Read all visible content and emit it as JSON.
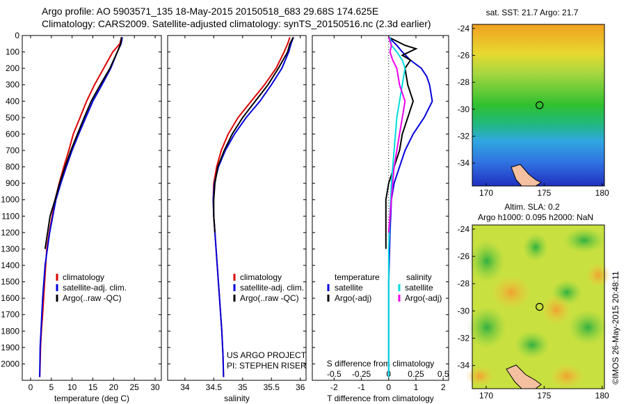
{
  "header": {
    "line1": "Argo profile: AO 5903571_135 18-May-2015 20150518_683 29.68S 174.625E",
    "line2": "Climatology: CARS2009. Satellite-adjusted climatology: synTS_20150516.nc (2.3d earlier)"
  },
  "project": {
    "line1": "US ARGO PROJECT",
    "line2": "PI: STEPHEN RISER"
  },
  "stamp": "©IMOS 26-May-2015 20:48:11",
  "colors": {
    "climatology": "#dd0000",
    "satellite": "#0000dd",
    "argo": "#000000",
    "cyan": "#00dddd",
    "magenta": "#ee00ee"
  },
  "chart_data": [
    {
      "type": "line",
      "xlabel": "temperature (deg C)",
      "ylim": [
        2100,
        0
      ],
      "xlim": [
        -2,
        31.5
      ],
      "xticks": [
        0,
        5,
        10,
        15,
        20,
        25,
        30
      ],
      "yticks": [
        0,
        100,
        200,
        300,
        400,
        500,
        600,
        700,
        800,
        900,
        1000,
        1100,
        1200,
        1300,
        1400,
        1500,
        1600,
        1700,
        1800,
        1900,
        2000
      ],
      "legend": [
        "climatology",
        "satellite-adj. clim.",
        "Argo(..raw -QC)"
      ],
      "series": [
        {
          "name": "climatology",
          "color": "#dd0000",
          "x": [
            21.9,
            21.5,
            19.8,
            17.6,
            15.4,
            13.5,
            11.9,
            10.3,
            9.2,
            8.0,
            6.9,
            5.9,
            4.5,
            3.9,
            3.4,
            2.9,
            2.6,
            2.4,
            2.3,
            2.2
          ],
          "y": [
            10,
            50,
            100,
            200,
            300,
            400,
            500,
            600,
            700,
            800,
            900,
            1000,
            1200,
            1300,
            1500,
            1700,
            1800,
            1900,
            2000,
            2080
          ]
        },
        {
          "name": "satellite-adj. clim.",
          "color": "#0000dd",
          "x": [
            22.1,
            21.8,
            20.9,
            19.3,
            17.2,
            15.0,
            13.3,
            11.6,
            10.0,
            8.6,
            7.3,
            6.1,
            4.6,
            3.5,
            2.9,
            2.5,
            2.3,
            2.2
          ],
          "y": [
            10,
            50,
            100,
            200,
            300,
            400,
            500,
            600,
            700,
            800,
            900,
            1000,
            1200,
            1400,
            1600,
            1800,
            1900,
            2080
          ]
        },
        {
          "name": "Argo(..raw -QC)",
          "color": "#000000",
          "x": [
            21.9,
            21.7,
            20.9,
            19.1,
            16.8,
            14.6,
            12.9,
            11.3,
            9.7,
            8.3,
            7.0,
            5.9,
            4.7,
            4.1,
            3.5
          ],
          "y": [
            10,
            50,
            100,
            200,
            300,
            400,
            500,
            600,
            700,
            800,
            900,
            1000,
            1100,
            1200,
            1300
          ]
        }
      ]
    },
    {
      "type": "line",
      "xlabel": "salinity",
      "ylim": [
        2100,
        0
      ],
      "xlim": [
        33.7,
        36.1
      ],
      "xticks": [
        34,
        34.5,
        35,
        35.5,
        36
      ],
      "xticklabels": [
        "34",
        "34.5",
        "35",
        "35.5",
        "36"
      ],
      "legend": [
        "climatology",
        "satellite-adj. clim.",
        "Argo(..raw -QC)"
      ],
      "series": [
        {
          "name": "climatology",
          "color": "#dd0000",
          "x": [
            35.82,
            35.78,
            35.72,
            35.58,
            35.38,
            35.15,
            34.92,
            34.75,
            34.63,
            34.55,
            34.5,
            34.49,
            34.5,
            34.52,
            34.56,
            34.6,
            34.64,
            34.66,
            34.67
          ],
          "y": [
            10,
            50,
            100,
            200,
            300,
            400,
            500,
            600,
            700,
            800,
            900,
            1000,
            1100,
            1200,
            1400,
            1600,
            1800,
            1950,
            2080
          ]
        },
        {
          "name": "satellite-adj. clim.",
          "color": "#0000dd",
          "x": [
            35.88,
            35.84,
            35.8,
            35.68,
            35.5,
            35.3,
            35.06,
            34.86,
            34.7,
            34.58,
            34.51,
            34.49,
            34.5,
            34.52,
            34.56,
            34.6,
            34.64,
            34.66,
            34.67
          ],
          "y": [
            10,
            50,
            100,
            200,
            300,
            400,
            500,
            600,
            700,
            800,
            900,
            1000,
            1100,
            1200,
            1400,
            1600,
            1800,
            1950,
            2080
          ]
        },
        {
          "name": "Argo(..raw -QC)",
          "color": "#000000",
          "x": [
            35.88,
            35.82,
            35.78,
            35.62,
            35.44,
            35.22,
            35.0,
            34.82,
            34.68,
            34.57,
            34.52,
            34.5,
            34.5,
            34.52
          ],
          "y": [
            10,
            50,
            100,
            200,
            300,
            400,
            500,
            600,
            700,
            800,
            900,
            1000,
            1100,
            1200
          ]
        }
      ]
    },
    {
      "type": "line",
      "xlabel": "T difference from climatology",
      "xlabel_top": "S difference from climatology",
      "ylim": [
        2100,
        0
      ],
      "xlim": [
        -2.8,
        2.2
      ],
      "xticks": [
        -2,
        -1,
        0,
        1,
        2
      ],
      "xticks_s": [
        -0.5,
        -0.25,
        0,
        0.25,
        0.5
      ],
      "legend_t": {
        "title": "temperature",
        "items": [
          "satellite",
          "Argo(-adj)"
        ]
      },
      "legend_s": {
        "title": "salinity",
        "items": [
          "satellite",
          "Argo(-adj)"
        ]
      },
      "series": [
        {
          "name": "satellite",
          "color": "#0000dd",
          "x": [
            0.0,
            0.3,
            0.5,
            0.8,
            1.2,
            1.4,
            1.5,
            1.6,
            1.3,
            0.9,
            0.6,
            0.4,
            0.2,
            0.1,
            0.05,
            0.0,
            0.0
          ],
          "y": [
            10,
            60,
            100,
            150,
            200,
            250,
            300,
            400,
            500,
            600,
            700,
            800,
            900,
            1000,
            1200,
            1500,
            2080
          ]
        },
        {
          "name": "Argo(-adj)",
          "color": "#000000",
          "x": [
            0.0,
            0.6,
            1.0,
            0.5,
            0.8,
            0.6,
            0.7,
            0.9,
            0.7,
            0.5,
            0.4,
            0.2,
            0.0,
            -0.1,
            -0.1,
            -0.1
          ],
          "y": [
            10,
            60,
            80,
            120,
            150,
            200,
            300,
            400,
            500,
            600,
            700,
            800,
            900,
            1000,
            1200,
            1300
          ]
        },
        {
          "name": "satellite (S)",
          "color": "#00dddd",
          "x": [
            0.05,
            0.1,
            0.3,
            0.5,
            0.6,
            0.45,
            0.3,
            0.2,
            0.1,
            0.05,
            0.0,
            0.0
          ],
          "y": [
            10,
            60,
            100,
            150,
            200,
            350,
            500,
            700,
            900,
            1100,
            1300,
            2080
          ]
        },
        {
          "name": "Argo(-adj) (S)",
          "color": "#ee00ee",
          "x": [
            0.0,
            0.1,
            0.05,
            0.15,
            0.3,
            0.4,
            0.6,
            0.5,
            0.4,
            0.3,
            0.2,
            0.1,
            0.0
          ],
          "y": [
            10,
            60,
            100,
            150,
            200,
            300,
            400,
            500,
            600,
            700,
            800,
            1000,
            1200
          ]
        }
      ]
    }
  ],
  "sst_map": {
    "title": "sat. SST: 21.7 Argo: 21.7",
    "xticks": [
      "170",
      "175",
      "180"
    ],
    "yticks": [
      "-24",
      "-26",
      "-28",
      "-30",
      "-32",
      "-34"
    ],
    "marker": {
      "lon": 174.6,
      "lat": -29.7
    }
  },
  "sla_map": {
    "title1": "Altim. SLA: 0.2",
    "title2": "Argo h1000: 0.095 h2000: NaN",
    "xticks": [
      "170",
      "175",
      "180"
    ],
    "yticks": [
      "-24",
      "-26",
      "-28",
      "-30",
      "-32",
      "-34"
    ],
    "marker": {
      "lon": 174.6,
      "lat": -29.7
    }
  }
}
